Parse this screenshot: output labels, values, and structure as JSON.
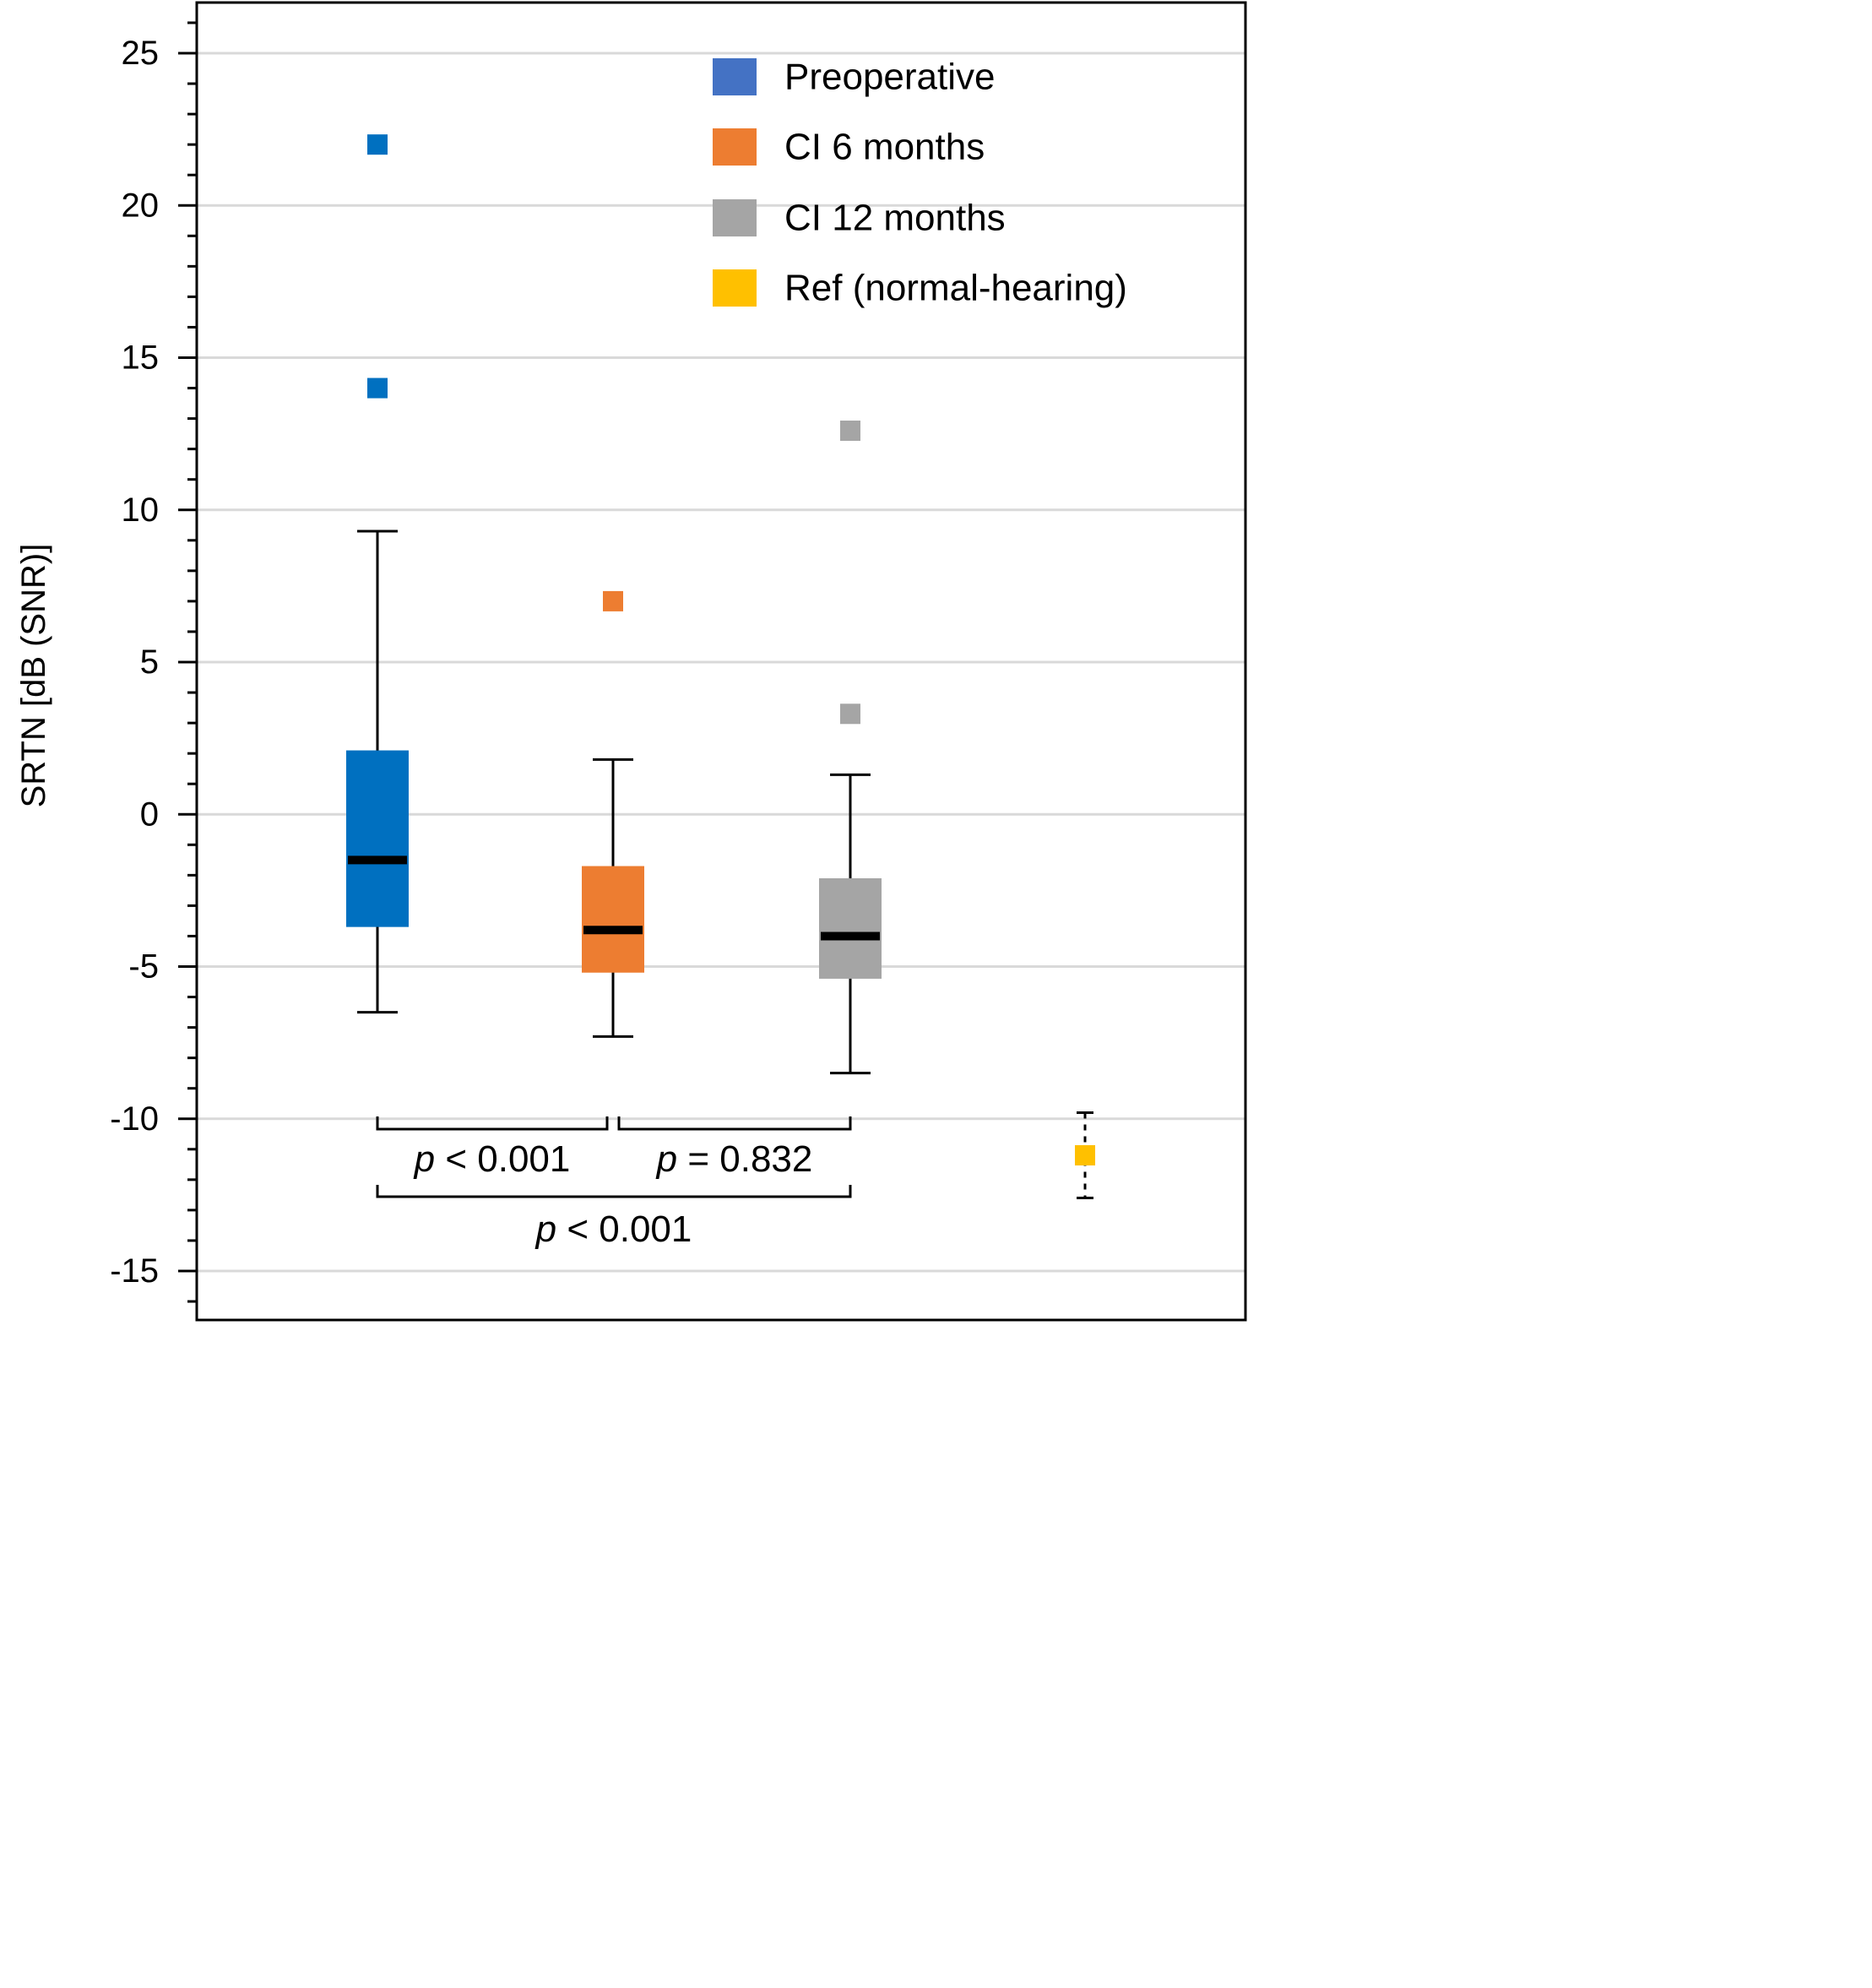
{
  "chart_data": {
    "type": "box",
    "title": "",
    "xlabel": "",
    "ylabel": "SRTN [dB (SNR)]",
    "ylim": [
      -16.5,
      26.5
    ],
    "yticks": [
      25,
      20,
      15,
      10,
      5,
      0,
      -5,
      -10,
      -15
    ],
    "ytick_labels": [
      "25",
      "20",
      "15",
      "10",
      "5",
      "0",
      "-5",
      "-10",
      "-15"
    ],
    "minor_tick_step": 1,
    "grid": true,
    "legend_position": "top-right",
    "series": [
      {
        "name": "Preoperative",
        "legend_color": "#4472C4",
        "color": "#0070C0",
        "whisker_low": -6.5,
        "q1": -3.7,
        "median": -1.5,
        "q3": 2.1,
        "whisker_high": 9.3,
        "outliers": [
          22.0,
          14.0
        ],
        "style": "box"
      },
      {
        "name": "CI 6 months",
        "legend_color": "#ED7D31",
        "color": "#ED7D31",
        "whisker_low": -7.3,
        "q1": -5.2,
        "median": -3.8,
        "q3": -1.7,
        "whisker_high": 1.8,
        "outliers": [
          7.0
        ],
        "style": "box"
      },
      {
        "name": "CI 12 months",
        "legend_color": "#A5A5A5",
        "color": "#A5A5A5",
        "whisker_low": -8.5,
        "q1": -5.4,
        "median": -4.0,
        "q3": -2.1,
        "whisker_high": 1.3,
        "outliers": [
          12.6,
          3.3
        ],
        "style": "box"
      },
      {
        "name": "Ref (normal-hearing)",
        "legend_color": "#FFC000",
        "color": "#FFC000",
        "whisker_low": -12.6,
        "median": -11.2,
        "whisker_high": -9.8,
        "outliers": [],
        "style": "point"
      }
    ],
    "comparisons": [
      {
        "from": 0,
        "to": 1,
        "italic": "p",
        "rest": " < 0.001"
      },
      {
        "from": 1,
        "to": 2,
        "italic": "p",
        "rest": " = 0.832"
      },
      {
        "from": 0,
        "to": 2,
        "italic": "p",
        "rest": " < 0.001"
      }
    ]
  }
}
